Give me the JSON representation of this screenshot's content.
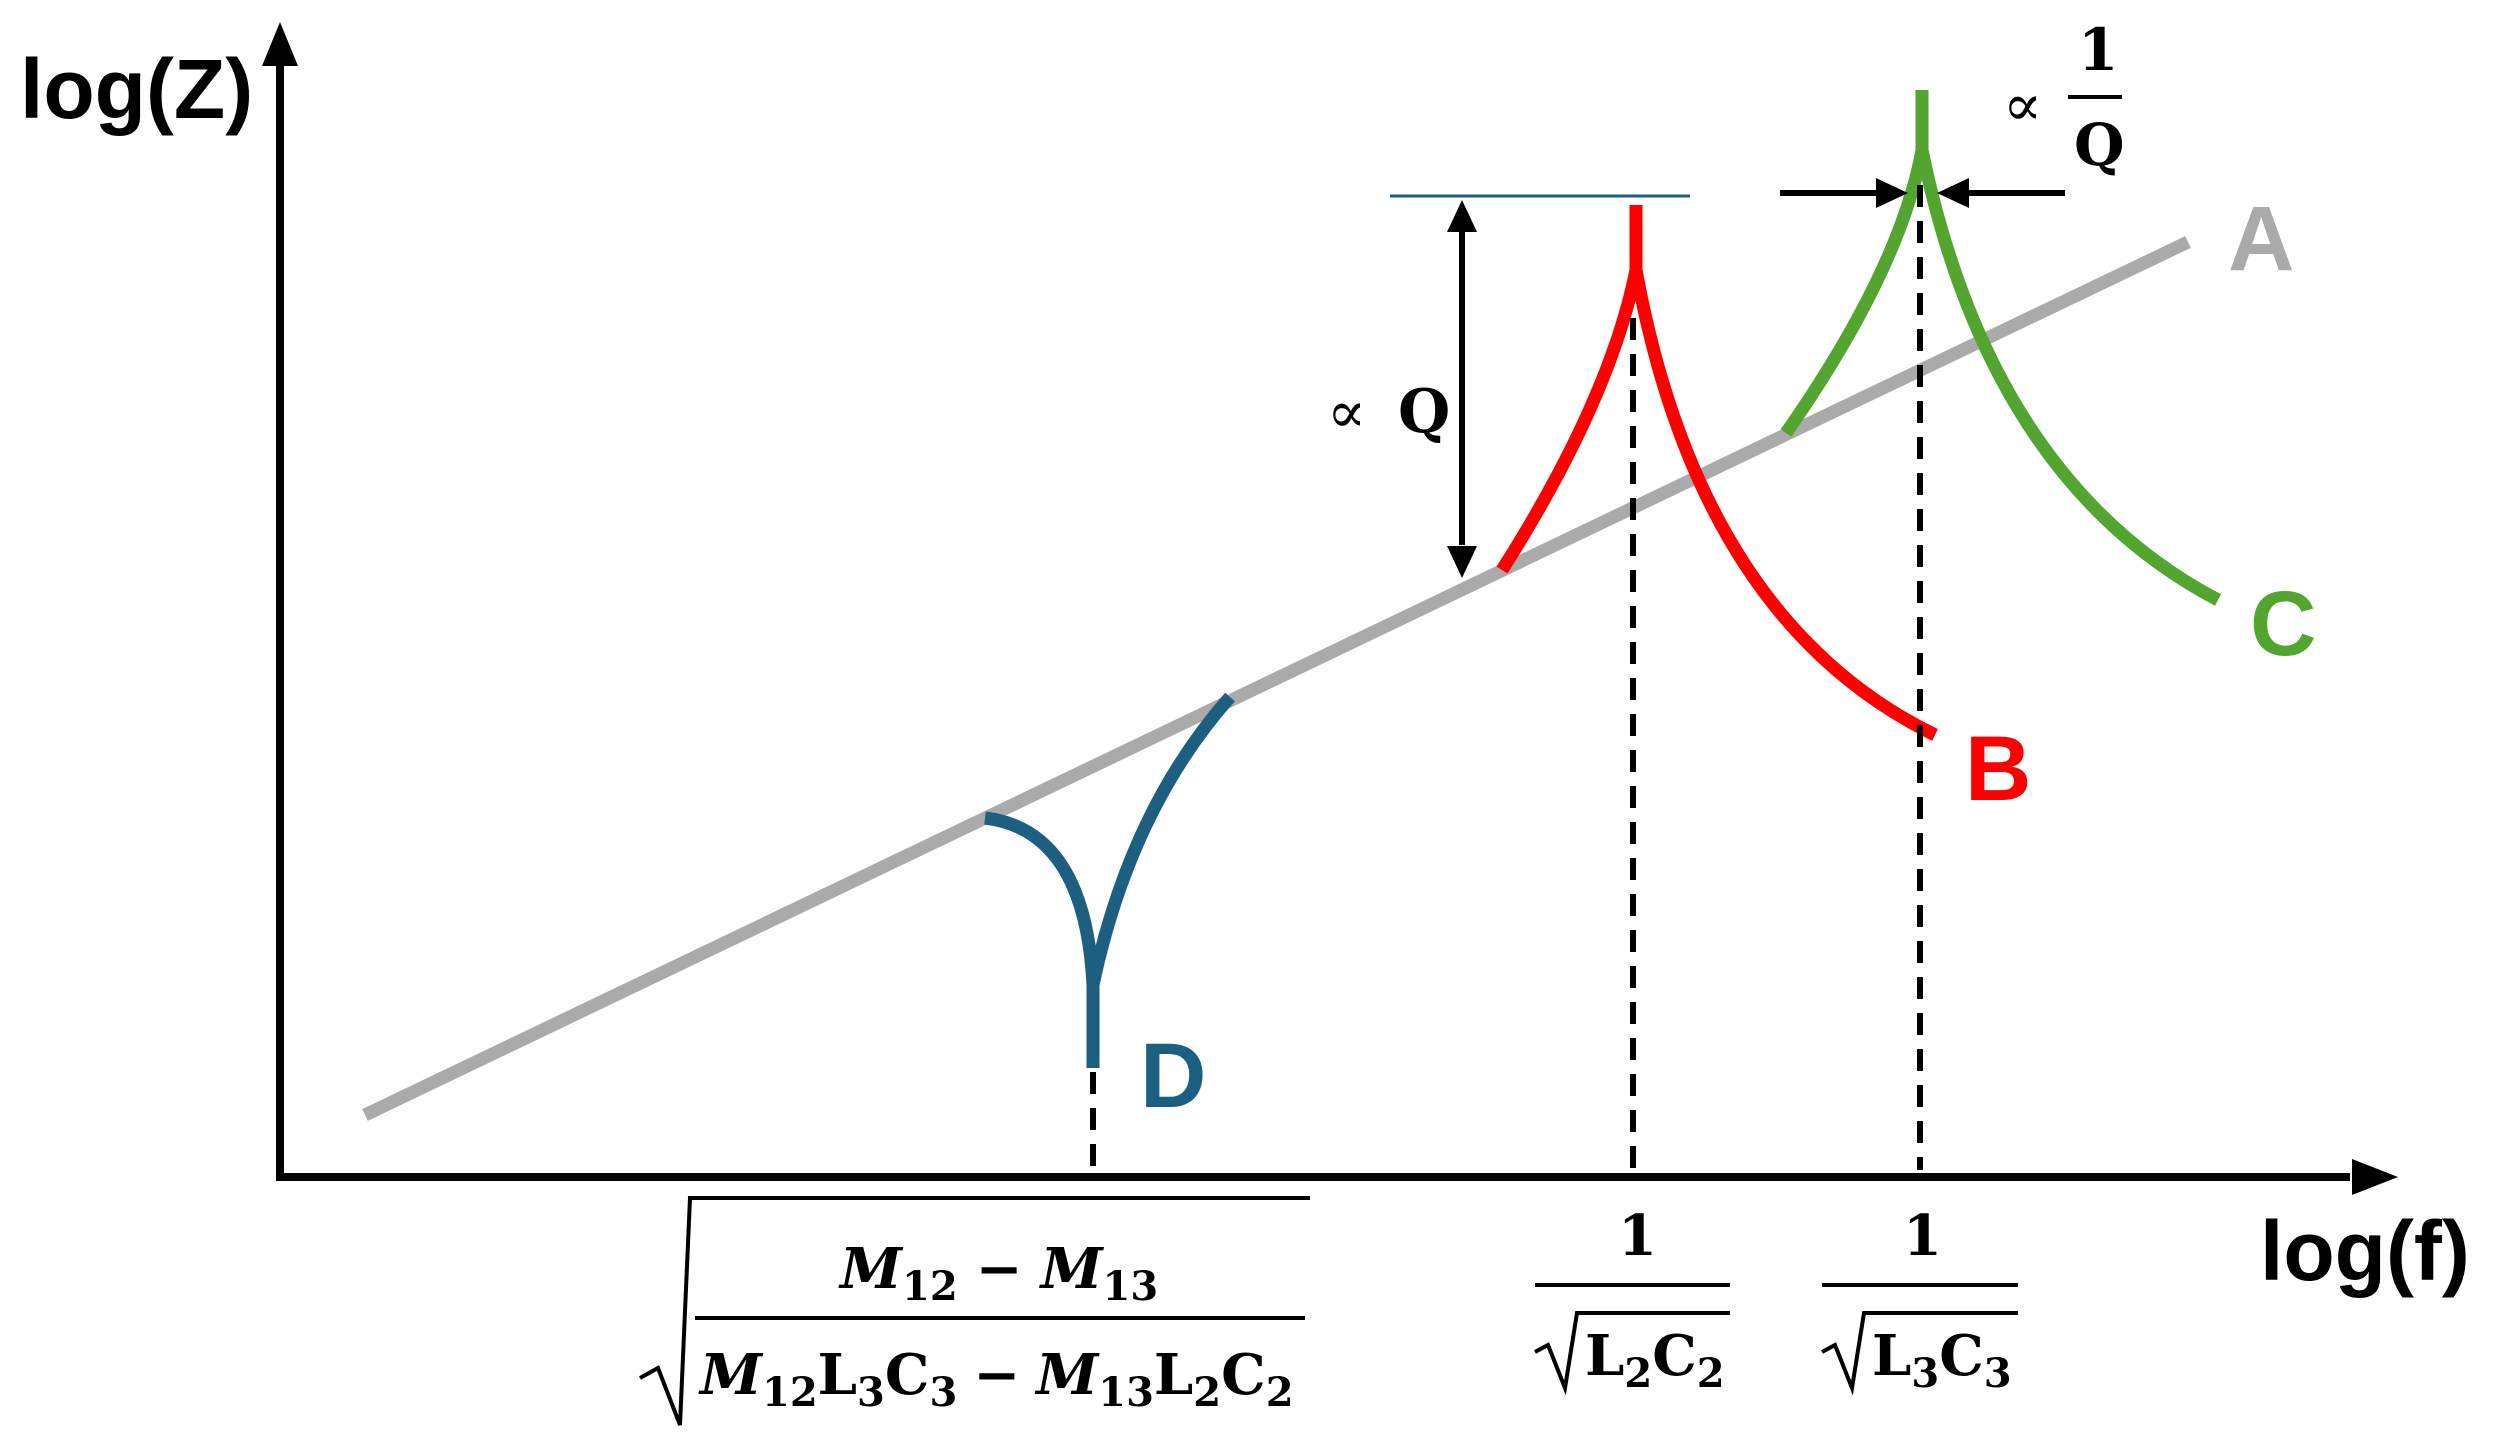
{
  "axes": {
    "y_label": "log(Z)",
    "x_label": "log(f)"
  },
  "curves": {
    "A": {
      "label": "A",
      "color": "#aaaaaa"
    },
    "B": {
      "label": "B",
      "color": "#ff0000"
    },
    "C": {
      "label": "C",
      "color": "#52a52e"
    },
    "D": {
      "label": "D",
      "color": "#1d5f80"
    }
  },
  "annotations": {
    "q_height": {
      "symbol": "∝",
      "text": "Q"
    },
    "q_width": {
      "symbol": "∝",
      "numerator": "1",
      "denominator": "Q"
    }
  },
  "tick_labels": {
    "d_freq": {
      "num_a": "M",
      "num_a_sub": "12",
      "minus": "−",
      "num_b": "M",
      "num_b_sub": "13",
      "den_a": "M",
      "den_a_sub": "12",
      "den_l3": "L",
      "den_l3_sub": "3",
      "den_c3": "C",
      "den_c3_sub": "3",
      "den_b": "M",
      "den_b_sub": "13",
      "den_l2": "L",
      "den_l2_sub": "2",
      "den_c2": "C",
      "den_c2_sub": "2"
    },
    "b_freq": {
      "numerator": "1",
      "l": "L",
      "l_sub": "2",
      "c": "C",
      "c_sub": "2"
    },
    "c_freq": {
      "numerator": "1",
      "l": "L",
      "l_sub": "3",
      "c": "C",
      "c_sub": "3"
    }
  }
}
